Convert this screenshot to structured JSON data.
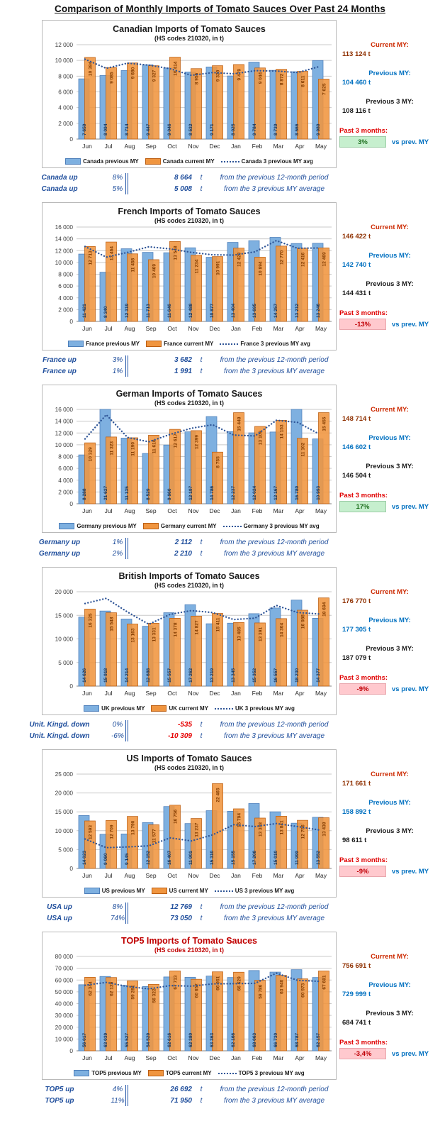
{
  "page_title": "Comparison of Monthly Imports of Tomato Sauces Over Past 24 Months",
  "months": [
    "Jun",
    "Jul",
    "Aug",
    "Sep",
    "Oct",
    "Nov",
    "Dec",
    "Jan",
    "Feb",
    "Mar",
    "Apr",
    "May"
  ],
  "stat_labels": {
    "current": "Current MY:",
    "previous": "Previous MY:",
    "prev3": "Previous 3 MY:",
    "past3": "Past 3 months:",
    "vs": "vs prev. MY"
  },
  "colors": {
    "prev_bar": "#7EB0E0",
    "prev_border": "#4E7FBA",
    "curr_bar": "#F0953F",
    "curr_border": "#BC5E11",
    "avg_line": "#2F5597",
    "prev_label_text": "#17375E",
    "curr_label_text": "#833C00",
    "badge_pos_bg": "#C6EFCE",
    "badge_pos_text": "#1E6F1E",
    "badge_pos_border": "#9CCDA6",
    "badge_neg_bg": "#FFC9CE",
    "badge_neg_text": "#C00006",
    "badge_neg_border": "#E9A6AD",
    "stat_current_label": "#CC2900",
    "stat_current_value": "#8F3000",
    "stat_previous": "#0070C0",
    "stat_prev3": "#1a1a1a",
    "stat_past3_label": "#E00000",
    "summary_text": "#1F4E9C",
    "negative_value": "#E60000",
    "top5_title": "#C00000",
    "default_title": "#1a1a1a"
  },
  "chart_data": [
    {
      "id": "canada",
      "type": "bar",
      "title": "Canadian Imports of Tomato Sauces",
      "subtitle": "(HS codes 210320, in t)",
      "title_color": "#1a1a1a",
      "categories": [
        "Jun",
        "Jul",
        "Aug",
        "Sep",
        "Oct",
        "Nov",
        "Dec",
        "Jan",
        "Feb",
        "Mar",
        "Apr",
        "May"
      ],
      "ylim": [
        0,
        12000
      ],
      "ytick": 2000,
      "grid": true,
      "legend_position": "bottom",
      "series": [
        {
          "name": "Canada previous MY",
          "values": [
            7659,
            8094,
            8714,
            9447,
            9046,
            8532,
            9171,
            8025,
            9784,
            8739,
            8566,
            9989
          ]
        },
        {
          "name": "Canada current MY",
          "values": [
            10384,
            9085,
            9680,
            9327,
            10414,
            8955,
            9329,
            9479,
            9044,
            8872,
            8611,
            7625
          ]
        }
      ],
      "avg_series": {
        "name": "Canada 3 previous MY avg",
        "estimated_from_plot": true,
        "values": [
          10150,
          9000,
          9650,
          9400,
          8950,
          8100,
          8450,
          8300,
          8700,
          8650,
          8450,
          9200
        ]
      },
      "side_stats": {
        "current": "113 124 t",
        "previous": "104 460 t",
        "prev3": "108 116 t",
        "past3": "3%",
        "past3_positive": true
      },
      "summary_rows": [
        {
          "name": "Canada up",
          "pct": "8%",
          "value": "8 664",
          "unit": "t",
          "desc": "from the previous 12-month period",
          "value_negative": false
        },
        {
          "name": "Canada up",
          "pct": "5%",
          "value": "5 008",
          "unit": "t",
          "desc": "from the 3 previous MY average",
          "value_negative": false
        }
      ]
    },
    {
      "id": "france",
      "type": "bar",
      "title": "French Imports of Tomato Sauces",
      "subtitle": "(HS codes 210320, in t)",
      "title_color": "#1a1a1a",
      "categories": [
        "Jun",
        "Jul",
        "Aug",
        "Sep",
        "Oct",
        "Nov",
        "Dec",
        "Jan",
        "Feb",
        "Mar",
        "Apr",
        "May"
      ],
      "ylim": [
        0,
        16000
      ],
      "ytick": 2000,
      "grid": true,
      "legend_position": "bottom",
      "series": [
        {
          "name": "France previous MY",
          "values": [
            11421,
            8340,
            12319,
            11713,
            11646,
            12488,
            10877,
            13404,
            13695,
            14257,
            13212,
            13246
          ]
        },
        {
          "name": "France current MY",
          "values": [
            12713,
            13464,
            11458,
            10469,
            13548,
            11234,
            10991,
            12423,
            10894,
            12770,
            12416,
            12469
          ]
        }
      ],
      "avg_series": {
        "name": "France 3 previous MY avg",
        "estimated_from_plot": true,
        "values": [
          12700,
          10900,
          11700,
          12650,
          12300,
          11700,
          11300,
          11250,
          11800,
          13700,
          12400,
          12450
        ]
      },
      "side_stats": {
        "current": "146 422 t",
        "previous": "142 740 t",
        "prev3": "144 431 t",
        "past3": "-13%",
        "past3_positive": false
      },
      "summary_rows": [
        {
          "name": "France up",
          "pct": "3%",
          "value": "3 682",
          "unit": "t",
          "desc": "from the previous 12-month period",
          "value_negative": false
        },
        {
          "name": "France up",
          "pct": "1%",
          "value": "1 991",
          "unit": "t",
          "desc": "from the 3 previous MY average",
          "value_negative": false
        }
      ]
    },
    {
      "id": "germany",
      "type": "bar",
      "title": "German Imports of Tomato Sauces",
      "subtitle": "(HS codes 210320, in t)",
      "title_color": "#1a1a1a",
      "categories": [
        "Jun",
        "Jul",
        "Aug",
        "Sep",
        "Oct",
        "Nov",
        "Dec",
        "Jan",
        "Feb",
        "Mar",
        "Apr",
        "May"
      ],
      "ylim": [
        0,
        16000
      ],
      "ytick": 2000,
      "grid": true,
      "legend_position": "bottom",
      "series": [
        {
          "name": "Germany previous MY",
          "values": [
            8288,
            21627,
            11135,
            8529,
            9960,
            12197,
            14786,
            12237,
            12024,
            12167,
            16780,
            10993
          ]
        },
        {
          "name": "Germany current MY",
          "values": [
            10329,
            11323,
            11190,
            11618,
            12617,
            12399,
            8755,
            15448,
            13109,
            14153,
            11102,
            15455
          ]
        }
      ],
      "avg_series": {
        "name": "Germany 3 previous MY avg",
        "estimated_from_plot": true,
        "values": [
          11000,
          15100,
          11250,
          10500,
          11750,
          12800,
          13400,
          11650,
          11500,
          14150,
          13800,
          11850
        ]
      },
      "side_stats": {
        "current": "148 714 t",
        "previous": "146 602 t",
        "prev3": "146 504 t",
        "past3": "17%",
        "past3_positive": true
      },
      "summary_rows": [
        {
          "name": "Germany up",
          "pct": "1%",
          "value": "2 112",
          "unit": "t",
          "desc": "from the previous 12-month period",
          "value_negative": false
        },
        {
          "name": "Germany up",
          "pct": "2%",
          "value": "2 210",
          "unit": "t",
          "desc": "from the 3 previous MY average",
          "value_negative": false
        }
      ]
    },
    {
      "id": "uk",
      "type": "bar",
      "title": "British Imports of Tomato Sauces",
      "subtitle": "(HS codes 210320, in t)",
      "title_color": "#1a1a1a",
      "categories": [
        "Jun",
        "Jul",
        "Aug",
        "Sep",
        "Oct",
        "Nov",
        "Dec",
        "Jan",
        "Feb",
        "Mar",
        "Apr",
        "May"
      ],
      "ylim": [
        0,
        20000
      ],
      "ytick": 5000,
      "grid": true,
      "legend_position": "bottom",
      "series": [
        {
          "name": "UK previous MY",
          "values": [
            14626,
            15918,
            14214,
            12688,
            15557,
            17262,
            13219,
            13345,
            15352,
            16557,
            18230,
            14377
          ]
        },
        {
          "name": "UK current MY",
          "values": [
            16325,
            15548,
            13163,
            13331,
            14378,
            14827,
            15411,
            13485,
            13391,
            14304,
            16088,
            18694
          ]
        }
      ],
      "avg_series": {
        "name": "UK 3 previous MY avg",
        "estimated_from_plot": true,
        "values": [
          17500,
          18600,
          15700,
          13100,
          15200,
          16000,
          15600,
          14100,
          14400,
          17100,
          15600,
          15300
        ]
      },
      "side_stats": {
        "current": "176 770 t",
        "previous": "177 305 t",
        "prev3": "187 079 t",
        "past3": "-9%",
        "past3_positive": false
      },
      "summary_rows": [
        {
          "name": "Unit. Kingd. down",
          "pct": "0%",
          "value": "-535",
          "unit": "t",
          "desc": "from the previous 12-month period",
          "value_negative": true
        },
        {
          "name": "Unit. Kingd. down",
          "pct": "-6%",
          "value": "-10 309",
          "unit": "t",
          "desc": "from the 3 previous MY average",
          "value_negative": true
        }
      ]
    },
    {
      "id": "us",
      "type": "bar",
      "title": "US Imports of Tomato Sauces",
      "subtitle": "(HS codes 210320, in t)",
      "title_color": "#1a1a1a",
      "categories": [
        "Jun",
        "Jul",
        "Aug",
        "Sep",
        "Oct",
        "Nov",
        "Dec",
        "Jan",
        "Feb",
        "Mar",
        "Apr",
        "May"
      ],
      "ylim": [
        0,
        25000
      ],
      "ytick": 5000,
      "grid": true,
      "legend_position": "bottom",
      "series": [
        {
          "name": "US previous MY",
          "values": [
            14023,
            9060,
            9145,
            12152,
            16407,
            11901,
            15310,
            15155,
            17208,
            15010,
            11999,
            13552
          ]
        },
        {
          "name": "US current MY",
          "values": [
            12593,
            12709,
            13790,
            11577,
            16756,
            13237,
            22465,
            15794,
            13348,
            13841,
            12756,
            13438
          ]
        }
      ],
      "avg_series": {
        "name": "US 3 previous MY avg",
        "estimated_from_plot": true,
        "values": [
          7800,
          5500,
          5700,
          6000,
          8100,
          7300,
          8900,
          11600,
          11100,
          11900,
          11100,
          10200
        ]
      },
      "side_stats": {
        "current": "171 661 t",
        "previous": "158 892 t",
        "prev3": "98 611 t",
        "past3": "-9%",
        "past3_positive": false
      },
      "summary_rows": [
        {
          "name": "USA up",
          "pct": "8%",
          "value": "12 769",
          "unit": "t",
          "desc": "from the previous 12-month period",
          "value_negative": false
        },
        {
          "name": "USA up",
          "pct": "74%",
          "value": "73 050",
          "unit": "t",
          "desc": "from the 3 previous MY average",
          "value_negative": false
        }
      ]
    },
    {
      "id": "top5",
      "type": "bar",
      "title": "TOP5 Imports of Tomato Sauces",
      "subtitle": "(HS codes 210320, in t)",
      "title_color": "#C00000",
      "categories": [
        "Jun",
        "Jul",
        "Aug",
        "Sep",
        "Oct",
        "Nov",
        "Dec",
        "Jan",
        "Feb",
        "Mar",
        "Apr",
        "May"
      ],
      "ylim": [
        0,
        80000
      ],
      "ytick": 10000,
      "grid": true,
      "legend_position": "bottom",
      "series": [
        {
          "name": "TOP5 previous MY",
          "values": [
            56017,
            63039,
            55527,
            54529,
            62616,
            62380,
            63363,
            62166,
            68063,
            66730,
            68787,
            62157
          ]
        },
        {
          "name": "TOP5 current MY",
          "values": [
            62344,
            62129,
            59281,
            56322,
            67713,
            60652,
            66951,
            66629,
            59786,
            63940,
            60973,
            67681
          ]
        }
      ],
      "avg_series": {
        "name": "TOP5 3 previous MY avg",
        "estimated_from_plot": true,
        "values": [
          55600,
          58000,
          54500,
          52500,
          55300,
          54800,
          56700,
          56900,
          57200,
          65800,
          59700,
          58900
        ]
      },
      "side_stats": {
        "current": "756 691 t",
        "previous": "729 999 t",
        "prev3": "684 741 t",
        "past3": "-3,4%",
        "past3_positive": false
      },
      "summary_rows": [
        {
          "name": "TOP5 up",
          "pct": "4%",
          "value": "26 692",
          "unit": "t",
          "desc": "from the previous 12-month period",
          "value_negative": false
        },
        {
          "name": "TOP5 up",
          "pct": "11%",
          "value": "71 950",
          "unit": "t",
          "desc": "from the 3 previous MY average",
          "value_negative": false
        }
      ]
    }
  ]
}
